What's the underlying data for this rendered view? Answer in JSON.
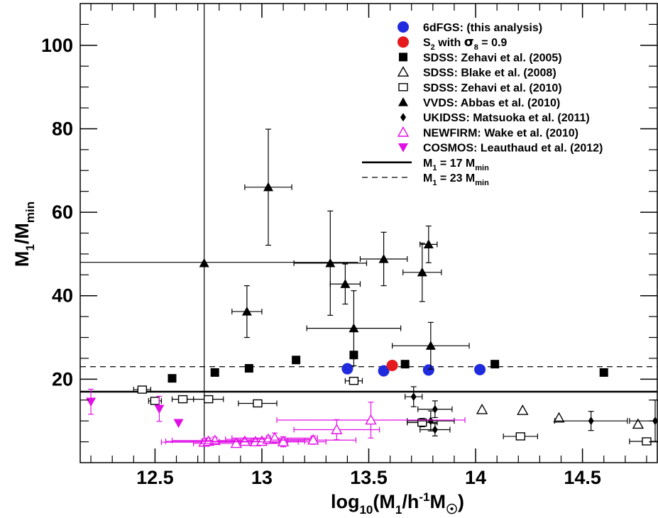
{
  "chart_data": {
    "type": "scatter",
    "title": "",
    "xlabel": "log10(M1/h^-1 M☉)",
    "xlabel_parts": {
      "base": "log",
      "base_sub": "10",
      "open": "(M",
      "sub1": "1",
      "mid": "/h",
      "sup": "-1",
      "tail": "M",
      "sun": "☉",
      "close": ")"
    },
    "ylabel": "M1/Mmin",
    "ylabel_parts": {
      "a": "M",
      "a_sub": "1",
      "slash": "/M",
      "b_sub": "min"
    },
    "xlim": [
      12.15,
      14.85
    ],
    "ylim": [
      0,
      110
    ],
    "xticks": [
      12.5,
      13,
      13.5,
      14,
      14.5
    ],
    "xtick_labels": [
      "12.5",
      "13",
      "13.5",
      "14",
      "14.5"
    ],
    "yticks": [
      20,
      40,
      60,
      80,
      100
    ],
    "ytick_labels": [
      "20",
      "40",
      "60",
      "80",
      "100"
    ],
    "grid": false,
    "legend_position": "top-right",
    "legend": [
      {
        "name": "6dFGS: (this analysis)",
        "marker": "circle",
        "color": "#1f2bdc"
      },
      {
        "name": "S2 with σ8 = 0.9",
        "marker": "circle",
        "color": "#e41a1c"
      },
      {
        "name": "SDSS: Zehavi et al. (2005)",
        "marker": "square-filled",
        "color": "#000000"
      },
      {
        "name": "SDSS: Blake et al. (2008)",
        "marker": "triangle-open",
        "color": "#000000"
      },
      {
        "name": "SDSS: Zehavi et al. (2010)",
        "marker": "square-open",
        "color": "#000000"
      },
      {
        "name": "VVDS: Abbas et al. (2010)",
        "marker": "triangle-filled",
        "color": "#000000"
      },
      {
        "name": "UKIDSS: Matsuoka et al. (2011)",
        "marker": "diamond",
        "color": "#000000"
      },
      {
        "name": "NEWFIRM: Wake et al. (2010)",
        "marker": "triangle-open",
        "color": "#e10fe6"
      },
      {
        "name": "COSMOS: Leauthaud et al. (2012)",
        "marker": "triangle-down",
        "color": "#e10fe6"
      },
      {
        "name": "M1 = 17 Mmin",
        "marker": "line-solid",
        "color": "#000000"
      },
      {
        "name": "M1 = 23 Mmin",
        "marker": "line-dashed",
        "color": "#000000"
      }
    ],
    "legend_rich": {
      "s2": {
        "a": "S",
        "a_sub": "2",
        "b": " with ",
        "sigma": "σ",
        "sigma_sub": "8",
        "c": " = 0.9"
      },
      "m17": {
        "a": "M",
        "a_sub": "1",
        "b": " = 17 M",
        "b_sub": "min"
      },
      "m23": {
        "a": "M",
        "a_sub": "1",
        "b": " = 23 M",
        "b_sub": "min"
      }
    },
    "hlines": [
      {
        "y": 17,
        "style": "solid"
      },
      {
        "y": 23,
        "style": "dashed"
      }
    ],
    "cross_lines": {
      "x": 12.73,
      "y": 48
    },
    "series": [
      {
        "name": "6dFGS: (this analysis)",
        "marker": "circle",
        "color": "#1f2bdc",
        "points": [
          [
            13.4,
            22.5
          ],
          [
            13.57,
            22.0
          ],
          [
            13.78,
            22.2
          ],
          [
            14.02,
            22.3
          ]
        ]
      },
      {
        "name": "S2 with σ8 = 0.9",
        "marker": "circle",
        "color": "#e41a1c",
        "points": [
          [
            13.61,
            23.3
          ]
        ]
      },
      {
        "name": "SDSS: Zehavi et al. (2005)",
        "marker": "square-filled",
        "color": "#000000",
        "points": [
          [
            12.58,
            20.2
          ],
          [
            12.78,
            21.6
          ],
          [
            12.94,
            22.6
          ],
          [
            13.16,
            24.6
          ],
          [
            13.43,
            25.8
          ],
          [
            13.67,
            23.6
          ],
          [
            14.09,
            23.6
          ],
          [
            14.6,
            21.6
          ]
        ]
      },
      {
        "name": "SDSS: Blake et al. (2008)",
        "marker": "triangle-open",
        "color": "#000000",
        "points": [
          [
            14.03,
            12.7
          ],
          [
            14.22,
            12.5
          ],
          [
            14.39,
            10.7
          ],
          [
            14.76,
            9.2
          ]
        ]
      },
      {
        "name": "SDSS: Zehavi et al. (2010)",
        "marker": "square-open",
        "color": "#000000",
        "points": [
          [
            12.44,
            17.5,
            0.04,
            0.8
          ],
          [
            12.5,
            14.8,
            0.03,
            0.8
          ],
          [
            12.63,
            15.2,
            0.05,
            0.6
          ],
          [
            12.75,
            15.2,
            0.07,
            0.8
          ],
          [
            12.98,
            14.2,
            0.09,
            0.8
          ],
          [
            13.43,
            19.6,
            0.04,
            0.8
          ],
          [
            13.75,
            9.6,
            0.07,
            1.0
          ],
          [
            14.21,
            6.3,
            0.08,
            0.5
          ],
          [
            14.8,
            5.1,
            0.08,
            0.5
          ]
        ]
      },
      {
        "name": "VVDS: Abbas et al. (2010)",
        "marker": "triangle-filled",
        "color": "#000000",
        "points": [
          [
            12.73,
            47.8,
            0,
            0
          ],
          [
            12.93,
            36.2,
            0.07,
            6.2
          ],
          [
            13.03,
            66.0,
            0.11,
            13.9
          ],
          [
            13.32,
            47.8,
            0.17,
            12.5
          ],
          [
            13.39,
            42.8,
            0.07,
            4.8
          ],
          [
            13.43,
            32.2,
            0.22,
            9.0
          ],
          [
            13.57,
            48.8,
            0.11,
            6.4
          ],
          [
            13.75,
            45.6,
            0.09,
            7.0
          ],
          [
            13.79,
            28.0,
            0.18,
            5.6
          ],
          [
            13.78,
            52.3,
            0.04,
            4.4
          ]
        ]
      },
      {
        "name": "UKIDSS: Matsuoka et al. (2011)",
        "marker": "diamond",
        "color": "#000000",
        "points": [
          [
            13.71,
            15.8,
            0.04,
            2.4
          ],
          [
            13.79,
            10.0,
            0.11,
            2.4
          ],
          [
            13.79,
            10.0,
            0.0,
            0.0
          ],
          [
            13.81,
            12.8,
            0.08,
            2.0
          ],
          [
            13.81,
            7.9,
            0.07,
            1.5
          ],
          [
            14.54,
            10.0,
            0.17,
            2.3
          ],
          [
            14.84,
            10.0,
            0.12,
            5.0
          ]
        ]
      },
      {
        "name": "NEWFIRM: Wake et al. (2010)",
        "marker": "triangle-open",
        "color": "#e10fe6",
        "points": [
          [
            12.73,
            4.9,
            0.2,
            0.8
          ],
          [
            12.75,
            5.1,
            0.2,
            0.8
          ],
          [
            12.78,
            5.3,
            0.2,
            0.8
          ],
          [
            12.88,
            4.6,
            0.2,
            0.8
          ],
          [
            12.92,
            5.1,
            0.2,
            0.8
          ],
          [
            12.97,
            5.0,
            0.2,
            0.8
          ],
          [
            13.0,
            5.1,
            0.2,
            0.8
          ],
          [
            13.03,
            5.6,
            0.2,
            0.8
          ],
          [
            13.06,
            5.9,
            0.2,
            1.2
          ],
          [
            13.1,
            5.0,
            0.2,
            1.2
          ],
          [
            13.24,
            5.4,
            0.2,
            1.0
          ],
          [
            13.35,
            7.9,
            0.2,
            2.4
          ],
          [
            13.51,
            10.2,
            0.44,
            4.3
          ]
        ]
      },
      {
        "name": "COSMOS: Leauthaud et al. (2012)",
        "marker": "triangle-down",
        "color": "#e10fe6",
        "points": [
          [
            12.2,
            14.6,
            0,
            3.0
          ],
          [
            12.52,
            12.9,
            0,
            3.0
          ],
          [
            12.61,
            9.5,
            0,
            0
          ]
        ]
      }
    ]
  }
}
